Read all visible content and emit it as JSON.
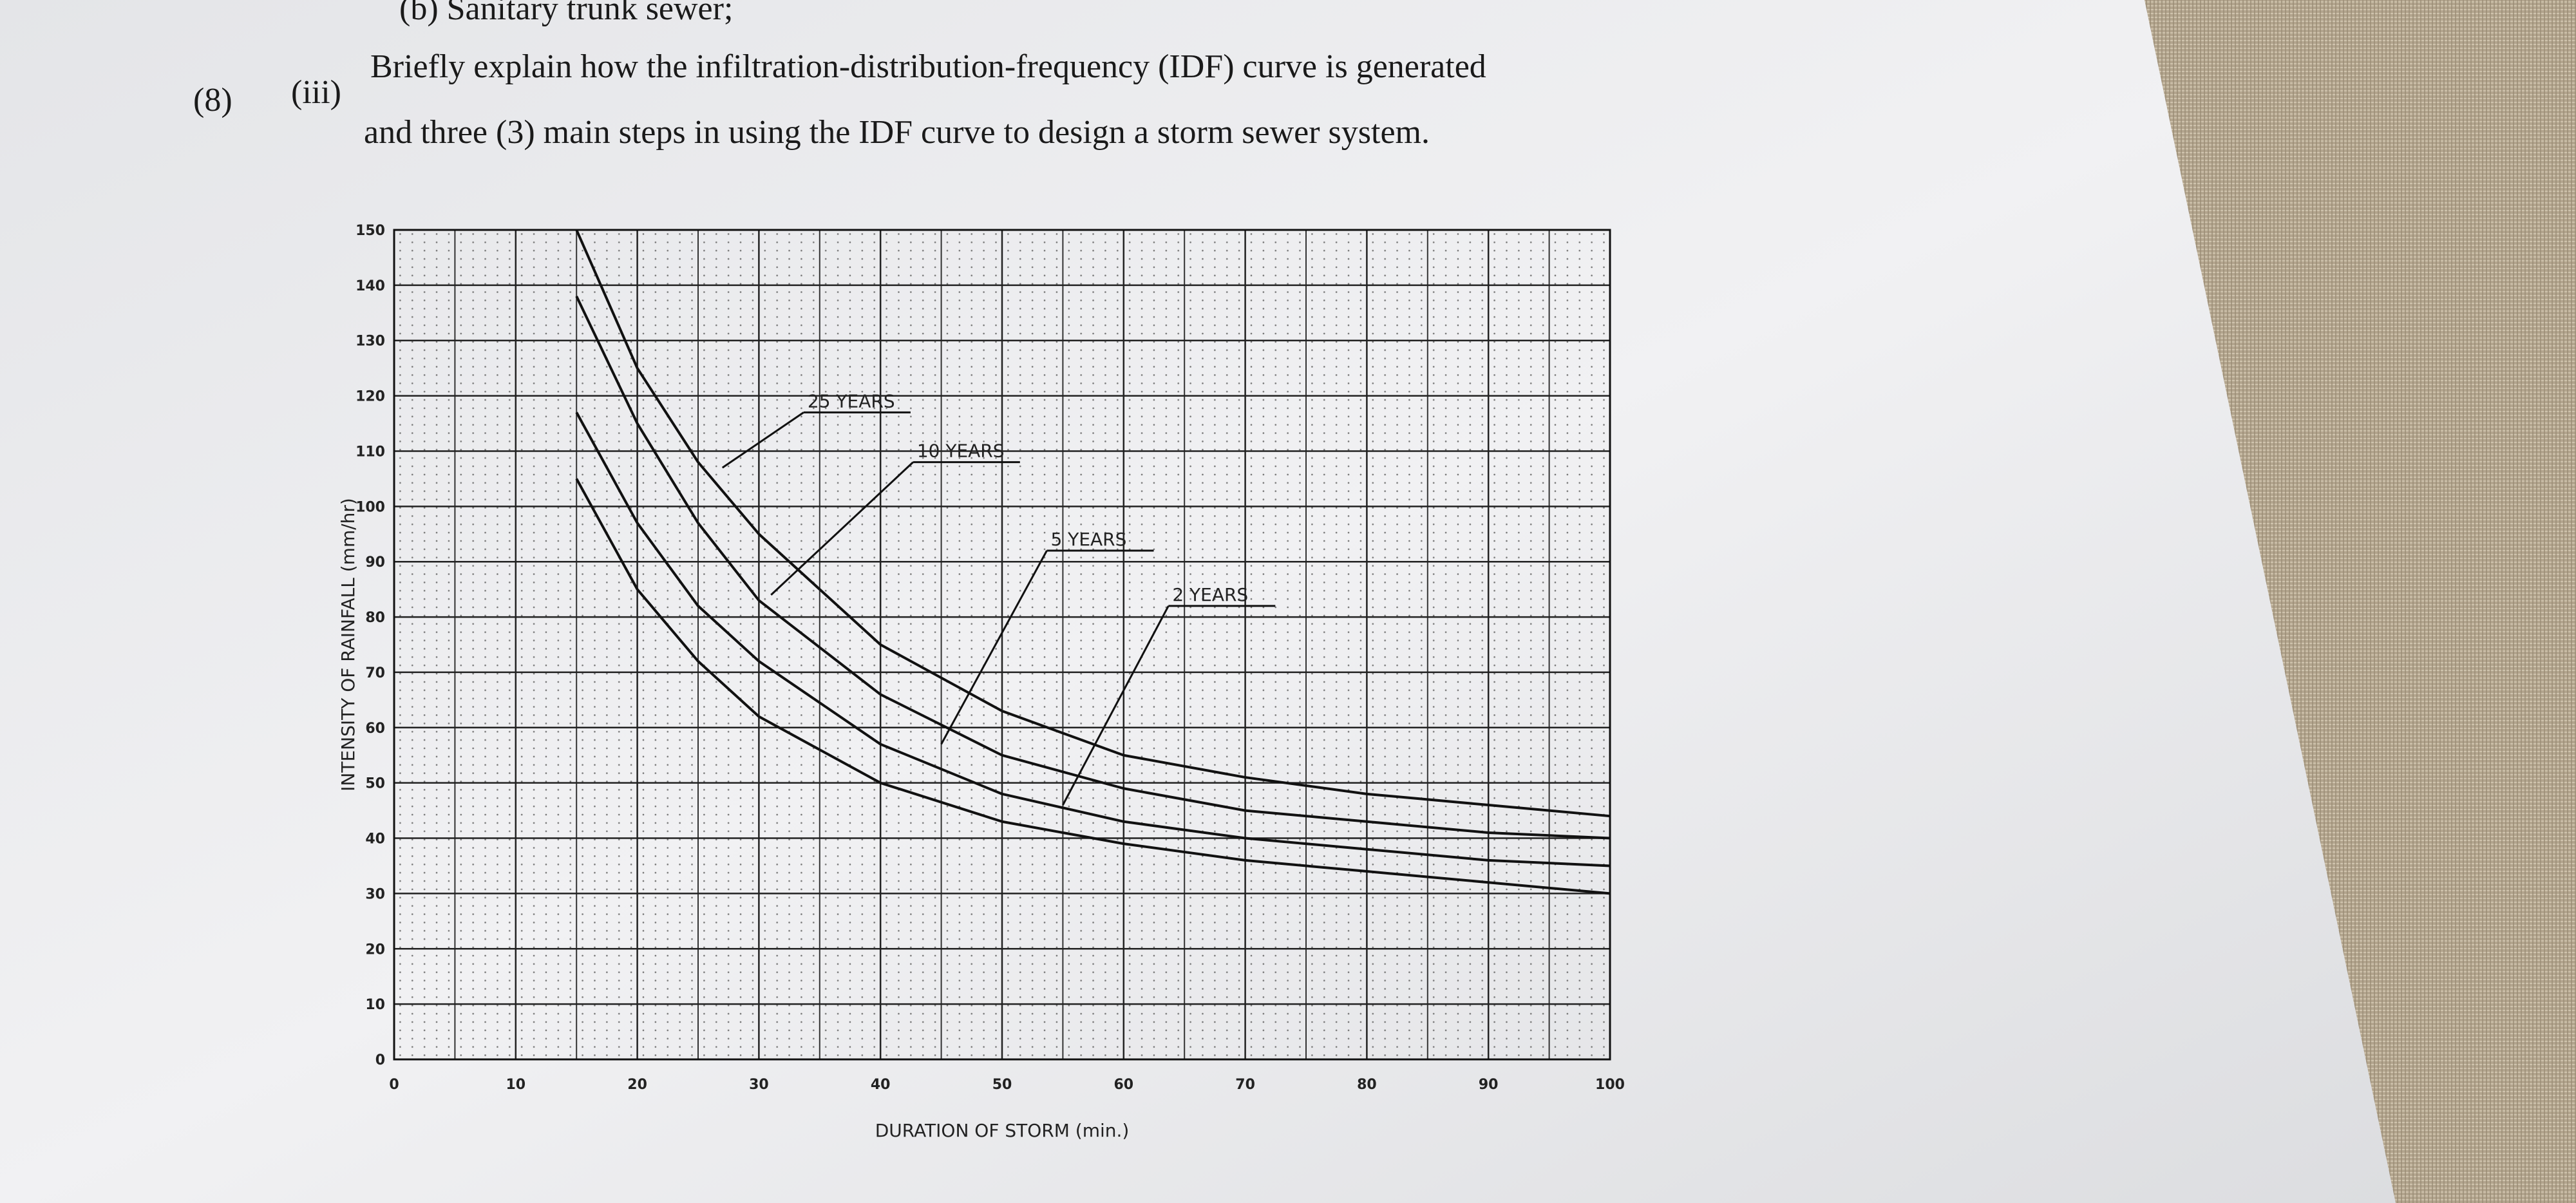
{
  "question": {
    "previous_item": "(b) Sanitary trunk sewer;",
    "mark": "(8)",
    "part": "(iii)",
    "lines": [
      "Briefly explain how the infiltration-distribution-frequency (IDF) curve is generated",
      "and three (3) main steps in using the IDF curve to design a storm sewer system."
    ]
  },
  "chart_data": {
    "type": "line",
    "x_label": "DURATION OF STORM (min.)",
    "y_label": "INTENSITY OF RAINFALL (mm/hr)",
    "x": [
      15,
      20,
      25,
      30,
      40,
      50,
      60,
      70,
      80,
      90,
      100
    ],
    "series": [
      {
        "name": "25 YEARS",
        "color": "#111111",
        "values": [
          150,
          125,
          108,
          95,
          75,
          63,
          55,
          51,
          48,
          46,
          44
        ]
      },
      {
        "name": "10 YEARS",
        "color": "#111111",
        "values": [
          138,
          115,
          97,
          83,
          66,
          55,
          49,
          45,
          43,
          41,
          40
        ]
      },
      {
        "name": "5 YEARS",
        "color": "#111111",
        "values": [
          117,
          97,
          82,
          72,
          57,
          48,
          43,
          40,
          38,
          36,
          35
        ]
      },
      {
        "name": "2 YEARS",
        "color": "#111111",
        "values": [
          105,
          85,
          72,
          62,
          50,
          43,
          39,
          36,
          34,
          32,
          30
        ]
      }
    ],
    "xlim": [
      0,
      100
    ],
    "ylim": [
      0,
      150
    ],
    "xticks": [
      0,
      10,
      20,
      30,
      40,
      50,
      60,
      70,
      80,
      90,
      100
    ],
    "yticks": [
      0,
      10,
      20,
      30,
      40,
      50,
      60,
      70,
      80,
      90,
      100,
      110,
      120,
      130,
      140,
      150
    ],
    "grid": true
  }
}
